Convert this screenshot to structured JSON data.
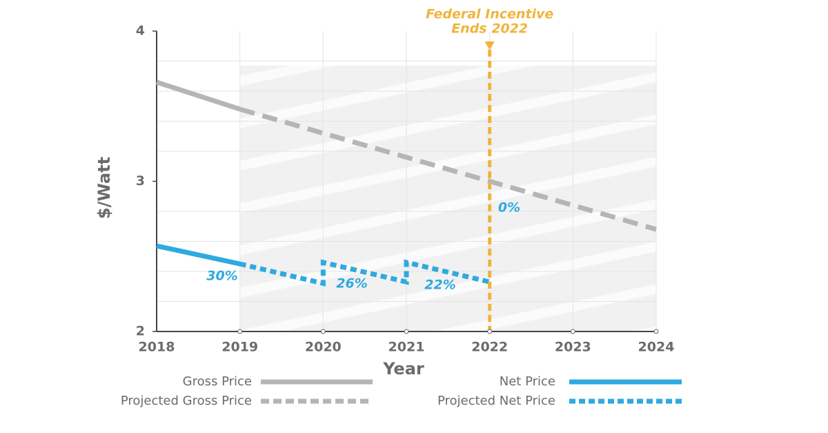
{
  "chart_data": {
    "type": "line",
    "xlabel": "Year",
    "ylabel": "$/Watt",
    "xlim": [
      2018,
      2024
    ],
    "xticks": [
      2018,
      2019,
      2020,
      2021,
      2022,
      2023,
      2024
    ],
    "ylim": [
      2,
      4
    ],
    "yticks": [
      2,
      3,
      4
    ],
    "minor_yticks": [
      2.2,
      2.4,
      2.6,
      2.8,
      3.2,
      3.4,
      3.6,
      3.8
    ],
    "grid": true,
    "shaded_xrange": [
      2019,
      2024
    ],
    "series": [
      {
        "name": "Gross Price",
        "color": "#b5b5b5",
        "dash": "solid",
        "x": [
          2018,
          2019
        ],
        "values": [
          3.66,
          3.48
        ]
      },
      {
        "name": "Projected Gross Price",
        "color": "#b5b5b5",
        "dash": "dashed",
        "x": [
          2019,
          2020,
          2021,
          2022,
          2023,
          2024
        ],
        "values": [
          3.48,
          3.32,
          3.16,
          3.0,
          2.84,
          2.68
        ]
      },
      {
        "name": "Net Price",
        "color": "#2fa9df",
        "dash": "solid",
        "x": [
          2018,
          2019
        ],
        "values": [
          2.57,
          2.45
        ]
      },
      {
        "name": "Projected Net Price",
        "color": "#2fa9df",
        "dash": "dotted",
        "x": [
          2019,
          2020,
          2020,
          2021,
          2021,
          2022
        ],
        "values": [
          2.45,
          2.32,
          2.46,
          2.33,
          2.46,
          2.33
        ]
      }
    ],
    "marker": {
      "x": 2022,
      "color": "#f0b43c",
      "label_lines": [
        "Federal Incentive",
        "Ends 2022"
      ]
    },
    "annotations": [
      "30%",
      "26%",
      "22%",
      "0%"
    ]
  }
}
